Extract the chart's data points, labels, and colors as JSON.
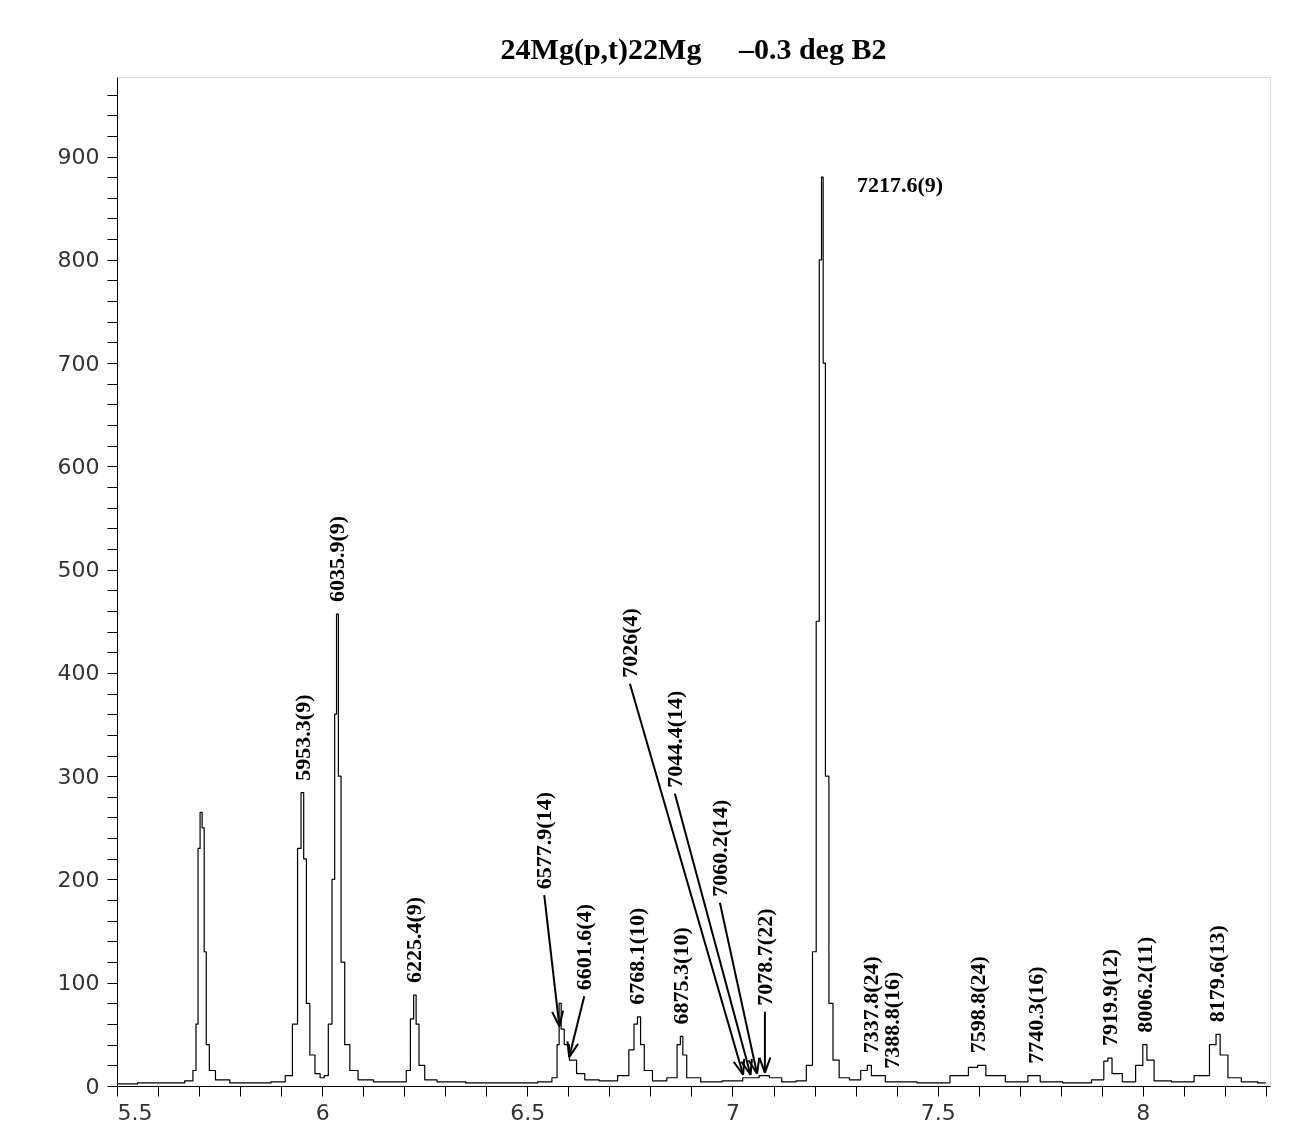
{
  "chart_data": {
    "type": "step",
    "title": "24Mg(p,t)22Mg     –0.3 deg B2",
    "x": [
      5.5,
      5.6,
      5.65,
      5.68,
      5.69,
      5.695,
      5.7,
      5.705,
      5.71,
      5.715,
      5.72,
      5.73,
      5.75,
      5.8,
      5.85,
      5.9,
      5.92,
      5.935,
      5.945,
      5.952,
      5.958,
      5.965,
      5.975,
      5.99,
      6.0,
      6.01,
      6.02,
      6.028,
      6.033,
      6.037,
      6.042,
      6.05,
      6.06,
      6.075,
      6.1,
      6.15,
      6.2,
      6.21,
      6.22,
      6.226,
      6.232,
      6.24,
      6.26,
      6.3,
      6.4,
      6.5,
      6.55,
      6.57,
      6.575,
      6.58,
      6.585,
      6.595,
      6.61,
      6.63,
      6.65,
      6.7,
      6.74,
      6.755,
      6.765,
      6.772,
      6.78,
      6.79,
      6.82,
      6.86,
      6.87,
      6.876,
      6.882,
      6.895,
      6.95,
      7.0,
      7.05,
      7.08,
      7.1,
      7.14,
      7.17,
      7.19,
      7.2,
      7.208,
      7.215,
      7.219,
      7.223,
      7.23,
      7.24,
      7.25,
      7.27,
      7.3,
      7.325,
      7.332,
      7.345,
      7.4,
      7.5,
      7.56,
      7.59,
      7.605,
      7.63,
      7.7,
      7.74,
      7.76,
      7.85,
      7.9,
      7.91,
      7.92,
      7.93,
      7.97,
      7.995,
      8.005,
      8.015,
      8.04,
      8.1,
      8.15,
      8.175,
      8.182,
      8.195,
      8.22,
      8.26,
      8.3
    ],
    "series": [
      {
        "color": "#000000",
        "values": [
          2,
          3,
          3,
          5,
          15,
          60,
          230,
          265,
          250,
          130,
          40,
          15,
          6,
          3,
          3,
          4,
          10,
          60,
          230,
          284,
          220,
          80,
          30,
          12,
          8,
          10,
          60,
          200,
          360,
          457,
          300,
          120,
          40,
          15,
          6,
          4,
          4,
          15,
          65,
          88,
          60,
          20,
          6,
          4,
          3,
          3,
          4,
          8,
          40,
          80,
          55,
          40,
          25,
          12,
          6,
          5,
          10,
          35,
          60,
          67,
          40,
          15,
          5,
          8,
          40,
          48,
          30,
          8,
          4,
          5,
          8,
          10,
          8,
          4,
          5,
          20,
          130,
          450,
          800,
          880,
          700,
          300,
          80,
          25,
          8,
          6,
          15,
          20,
          10,
          4,
          3,
          10,
          18,
          20,
          10,
          4,
          10,
          4,
          3,
          6,
          24,
          27,
          12,
          4,
          20,
          40,
          25,
          5,
          4,
          10,
          40,
          50,
          30,
          8,
          4,
          3
        ]
      }
    ],
    "xlim": [
      5.5,
      8.31
    ],
    "ylim": [
      0,
      977
    ],
    "xticks": [
      5.5,
      {
        "value": 5.6,
        "label": null
      },
      {
        "value": 5.7,
        "label": null
      },
      {
        "value": 5.8,
        "label": null
      },
      {
        "value": 5.9,
        "label": null
      },
      6,
      {
        "value": 6.1,
        "label": null
      },
      {
        "value": 6.2,
        "label": null
      },
      {
        "value": 6.3,
        "label": null
      },
      {
        "value": 6.4,
        "label": null
      },
      6.5,
      {
        "value": 6.6,
        "label": null
      },
      {
        "value": 6.7,
        "label": null
      },
      {
        "value": 6.8,
        "label": null
      },
      {
        "value": 6.9,
        "label": null
      },
      7,
      {
        "value": 7.1,
        "label": null
      },
      {
        "value": 7.2,
        "label": null
      },
      {
        "value": 7.3,
        "label": null
      },
      {
        "value": 7.4,
        "label": null
      },
      7.5,
      {
        "value": 7.6,
        "label": null
      },
      {
        "value": 7.7,
        "label": null
      },
      {
        "value": 7.8,
        "label": null
      },
      {
        "value": 7.9,
        "label": null
      },
      8,
      {
        "value": 8.1,
        "label": null
      },
      {
        "value": 8.2,
        "label": null
      },
      {
        "value": 8.3,
        "label": null
      }
    ],
    "yticks": [
      0,
      {
        "value": 20,
        "label": null
      },
      {
        "value": 40,
        "label": null
      },
      {
        "value": 60,
        "label": null
      },
      {
        "value": 80,
        "label": null
      },
      100,
      {
        "value": 120,
        "label": null
      },
      {
        "value": 140,
        "label": null
      },
      {
        "value": 160,
        "label": null
      },
      {
        "value": 180,
        "label": null
      },
      200,
      {
        "value": 220,
        "label": null
      },
      {
        "value": 240,
        "label": null
      },
      {
        "value": 260,
        "label": null
      },
      {
        "value": 280,
        "label": null
      },
      300,
      {
        "value": 320,
        "label": null
      },
      {
        "value": 340,
        "label": null
      },
      {
        "value": 360,
        "label": null
      },
      {
        "value": 380,
        "label": null
      },
      400,
      {
        "value": 420,
        "label": null
      },
      {
        "value": 440,
        "label": null
      },
      {
        "value": 460,
        "label": null
      },
      {
        "value": 480,
        "label": null
      },
      500,
      {
        "value": 520,
        "label": null
      },
      {
        "value": 540,
        "label": null
      },
      {
        "value": 560,
        "label": null
      },
      {
        "value": 580,
        "label": null
      },
      600,
      {
        "value": 620,
        "label": null
      },
      {
        "value": 640,
        "label": null
      },
      {
        "value": 660,
        "label": null
      },
      {
        "value": 680,
        "label": null
      },
      700,
      {
        "value": 720,
        "label": null
      },
      {
        "value": 740,
        "label": null
      },
      {
        "value": 760,
        "label": null
      },
      {
        "value": 780,
        "label": null
      },
      800,
      {
        "value": 820,
        "label": null
      },
      {
        "value": 840,
        "label": null
      },
      {
        "value": 860,
        "label": null
      },
      {
        "value": 880,
        "label": null
      },
      900,
      {
        "value": 920,
        "label": null
      },
      {
        "value": 940,
        "label": null
      },
      {
        "value": 960,
        "label": null
      }
    ],
    "grid": false,
    "annotations": [
      {
        "text": "5953.3(9)",
        "x": 5.953,
        "y": 284
      },
      {
        "text": "6035.9(9)",
        "x": 6.036,
        "y": 457
      },
      {
        "text": "6225.4(9)",
        "x": 6.225,
        "y": 88
      },
      {
        "text": "6577.9(14)",
        "x": 6.578,
        "y": 55
      },
      {
        "text": "6601.6(4)",
        "x": 6.602,
        "y": 25
      },
      {
        "text": "6768.1(10)",
        "x": 6.768,
        "y": 67
      },
      {
        "text": "6875.3(10)",
        "x": 6.875,
        "y": 48
      },
      {
        "text": "7026(4)",
        "x": 7.026,
        "y": 8
      },
      {
        "text": "7044.4(14)",
        "x": 7.044,
        "y": 8
      },
      {
        "text": "7060.2(14)",
        "x": 7.06,
        "y": 9
      },
      {
        "text": "7078.7(22)",
        "x": 7.079,
        "y": 10
      },
      {
        "text": "7217.6(9)",
        "x": 7.218,
        "y": 880
      },
      {
        "text": "7337.8(24)",
        "x": 7.338,
        "y": 20
      },
      {
        "text": "7388.8(16)",
        "x": 7.389,
        "y": 5
      },
      {
        "text": "7598.8(24)",
        "x": 7.599,
        "y": 20
      },
      {
        "text": "7740.3(16)",
        "x": 7.74,
        "y": 10
      },
      {
        "text": "7919.9(12)",
        "x": 7.92,
        "y": 27
      },
      {
        "text": "8006.2(11)",
        "x": 8.006,
        "y": 40
      },
      {
        "text": "8179.6(13)",
        "x": 8.18,
        "y": 50
      }
    ]
  }
}
